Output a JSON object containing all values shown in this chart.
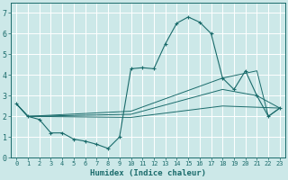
{
  "xlabel": "Humidex (Indice chaleur)",
  "xlim": [
    -0.5,
    23.5
  ],
  "ylim": [
    0,
    7.5
  ],
  "yticks": [
    0,
    1,
    2,
    3,
    4,
    5,
    6,
    7
  ],
  "xticks": [
    0,
    1,
    2,
    3,
    4,
    5,
    6,
    7,
    8,
    9,
    10,
    11,
    12,
    13,
    14,
    15,
    16,
    17,
    18,
    19,
    20,
    21,
    22,
    23
  ],
  "background_color": "#cce8e8",
  "line_color": "#1a6b6b",
  "grid_color": "#ffffff",
  "series": [
    {
      "x": [
        0,
        1,
        2,
        3,
        4,
        5,
        6,
        7,
        8,
        9,
        10,
        11,
        12,
        13,
        14,
        15,
        16,
        17,
        18,
        19,
        20,
        21,
        22,
        23
      ],
      "y": [
        2.6,
        2.0,
        1.85,
        1.2,
        1.2,
        0.9,
        0.8,
        0.65,
        0.45,
        1.0,
        4.3,
        4.35,
        4.3,
        5.5,
        6.5,
        6.8,
        6.55,
        6.0,
        3.85,
        3.3,
        4.2,
        3.0,
        2.0,
        2.4
      ],
      "marker": true
    },
    {
      "x": [
        0,
        1,
        10,
        18,
        21,
        22,
        23
      ],
      "y": [
        2.6,
        2.0,
        2.25,
        3.85,
        4.2,
        2.0,
        2.4
      ],
      "marker": false
    },
    {
      "x": [
        0,
        1,
        10,
        18,
        21,
        23
      ],
      "y": [
        2.6,
        2.0,
        2.1,
        3.3,
        3.0,
        2.4
      ],
      "marker": false
    },
    {
      "x": [
        0,
        1,
        10,
        18,
        23
      ],
      "y": [
        2.6,
        2.0,
        1.95,
        2.5,
        2.4
      ],
      "marker": false
    }
  ]
}
